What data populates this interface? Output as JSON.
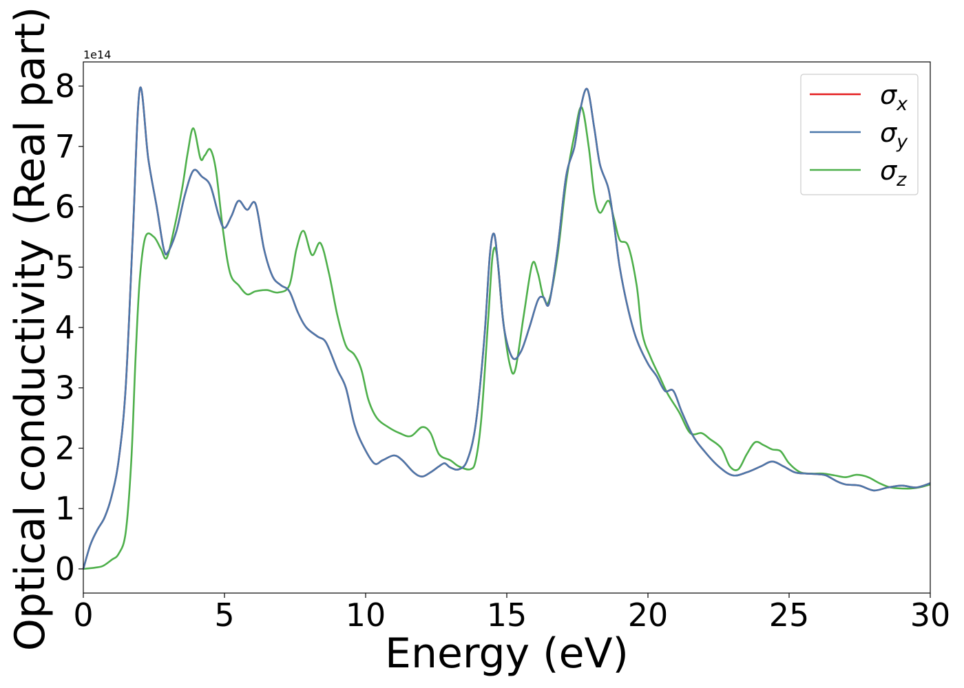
{
  "chart_data": {
    "type": "line",
    "xlabel": "Energy (eV)",
    "ylabel": "Optical conductivity (Real part)",
    "offset_text": "1e14",
    "xlim": [
      0,
      30
    ],
    "ylim": [
      -0.4,
      8.4
    ],
    "xticks": [
      0,
      5,
      10,
      15,
      20,
      25,
      30
    ],
    "xtick_labels": [
      "0",
      "5",
      "10",
      "15",
      "20",
      "25",
      "30"
    ],
    "yticks": [
      0,
      1,
      2,
      3,
      4,
      5,
      6,
      7,
      8
    ],
    "ytick_labels": [
      "0",
      "1",
      "2",
      "3",
      "4",
      "5",
      "6",
      "7",
      "8"
    ],
    "grid": false,
    "legend_position": "top-right",
    "series": [
      {
        "name": "σ_x",
        "legend_base": "σ",
        "legend_sub": "x",
        "color": "#e41a1c",
        "points": [
          [
            0,
            0
          ],
          [
            0.25,
            0.4
          ],
          [
            0.5,
            0.65
          ],
          [
            0.75,
            0.85
          ],
          [
            1.0,
            1.2
          ],
          [
            1.25,
            1.8
          ],
          [
            1.5,
            3.0
          ],
          [
            1.75,
            5.5
          ],
          [
            2.0,
            7.95
          ],
          [
            2.3,
            6.8
          ],
          [
            2.6,
            6.0
          ],
          [
            2.85,
            5.3
          ],
          [
            3.0,
            5.25
          ],
          [
            3.3,
            5.6
          ],
          [
            3.6,
            6.2
          ],
          [
            3.9,
            6.6
          ],
          [
            4.2,
            6.5
          ],
          [
            4.5,
            6.35
          ],
          [
            4.8,
            5.85
          ],
          [
            5.0,
            5.65
          ],
          [
            5.25,
            5.85
          ],
          [
            5.5,
            6.1
          ],
          [
            5.8,
            5.95
          ],
          [
            6.1,
            6.05
          ],
          [
            6.4,
            5.3
          ],
          [
            6.7,
            4.85
          ],
          [
            7.0,
            4.7
          ],
          [
            7.3,
            4.6
          ],
          [
            7.6,
            4.25
          ],
          [
            7.9,
            4.0
          ],
          [
            8.3,
            3.85
          ],
          [
            8.6,
            3.75
          ],
          [
            9.0,
            3.3
          ],
          [
            9.3,
            3.0
          ],
          [
            9.6,
            2.4
          ],
          [
            9.9,
            2.05
          ],
          [
            10.3,
            1.75
          ],
          [
            10.6,
            1.8
          ],
          [
            11.0,
            1.88
          ],
          [
            11.3,
            1.8
          ],
          [
            11.7,
            1.6
          ],
          [
            12.0,
            1.53
          ],
          [
            12.3,
            1.6
          ],
          [
            12.6,
            1.7
          ],
          [
            12.8,
            1.75
          ],
          [
            13.0,
            1.68
          ],
          [
            13.3,
            1.65
          ],
          [
            13.6,
            1.8
          ],
          [
            13.9,
            2.4
          ],
          [
            14.2,
            3.8
          ],
          [
            14.4,
            5.2
          ],
          [
            14.55,
            5.55
          ],
          [
            14.7,
            5.0
          ],
          [
            14.9,
            4.0
          ],
          [
            15.2,
            3.5
          ],
          [
            15.5,
            3.6
          ],
          [
            15.8,
            4.0
          ],
          [
            16.1,
            4.45
          ],
          [
            16.3,
            4.5
          ],
          [
            16.5,
            4.4
          ],
          [
            16.8,
            5.3
          ],
          [
            17.1,
            6.5
          ],
          [
            17.4,
            7.0
          ],
          [
            17.6,
            7.6
          ],
          [
            17.85,
            7.95
          ],
          [
            18.1,
            7.3
          ],
          [
            18.3,
            6.7
          ],
          [
            18.6,
            6.3
          ],
          [
            18.8,
            5.7
          ],
          [
            19.0,
            5.0
          ],
          [
            19.3,
            4.3
          ],
          [
            19.6,
            3.8
          ],
          [
            20.0,
            3.4
          ],
          [
            20.3,
            3.2
          ],
          [
            20.6,
            2.95
          ],
          [
            20.9,
            2.95
          ],
          [
            21.2,
            2.6
          ],
          [
            21.6,
            2.2
          ],
          [
            22.0,
            1.95
          ],
          [
            22.5,
            1.7
          ],
          [
            23.0,
            1.55
          ],
          [
            23.5,
            1.6
          ],
          [
            24.0,
            1.7
          ],
          [
            24.4,
            1.78
          ],
          [
            24.8,
            1.7
          ],
          [
            25.2,
            1.6
          ],
          [
            25.6,
            1.58
          ],
          [
            26.0,
            1.57
          ],
          [
            26.3,
            1.55
          ],
          [
            26.7,
            1.45
          ],
          [
            27.0,
            1.4
          ],
          [
            27.5,
            1.38
          ],
          [
            28.0,
            1.3
          ],
          [
            28.5,
            1.35
          ],
          [
            29.0,
            1.38
          ],
          [
            29.5,
            1.35
          ],
          [
            30.0,
            1.42
          ]
        ]
      },
      {
        "name": "σ_y",
        "legend_base": "σ",
        "legend_sub": "y",
        "color": "#4a77aa",
        "points": [
          [
            0,
            0
          ],
          [
            0.25,
            0.4
          ],
          [
            0.5,
            0.65
          ],
          [
            0.75,
            0.85
          ],
          [
            1.0,
            1.2
          ],
          [
            1.25,
            1.8
          ],
          [
            1.5,
            3.0
          ],
          [
            1.75,
            5.5
          ],
          [
            2.0,
            7.95
          ],
          [
            2.3,
            6.8
          ],
          [
            2.6,
            6.0
          ],
          [
            2.85,
            5.3
          ],
          [
            3.0,
            5.25
          ],
          [
            3.3,
            5.6
          ],
          [
            3.6,
            6.2
          ],
          [
            3.9,
            6.6
          ],
          [
            4.2,
            6.5
          ],
          [
            4.5,
            6.35
          ],
          [
            4.8,
            5.85
          ],
          [
            5.0,
            5.65
          ],
          [
            5.25,
            5.85
          ],
          [
            5.5,
            6.1
          ],
          [
            5.8,
            5.95
          ],
          [
            6.1,
            6.05
          ],
          [
            6.4,
            5.3
          ],
          [
            6.7,
            4.85
          ],
          [
            7.0,
            4.7
          ],
          [
            7.3,
            4.6
          ],
          [
            7.6,
            4.25
          ],
          [
            7.9,
            4.0
          ],
          [
            8.3,
            3.85
          ],
          [
            8.6,
            3.75
          ],
          [
            9.0,
            3.3
          ],
          [
            9.3,
            3.0
          ],
          [
            9.6,
            2.4
          ],
          [
            9.9,
            2.05
          ],
          [
            10.3,
            1.75
          ],
          [
            10.6,
            1.8
          ],
          [
            11.0,
            1.88
          ],
          [
            11.3,
            1.8
          ],
          [
            11.7,
            1.6
          ],
          [
            12.0,
            1.53
          ],
          [
            12.3,
            1.6
          ],
          [
            12.6,
            1.7
          ],
          [
            12.8,
            1.75
          ],
          [
            13.0,
            1.68
          ],
          [
            13.3,
            1.65
          ],
          [
            13.6,
            1.8
          ],
          [
            13.9,
            2.4
          ],
          [
            14.2,
            3.8
          ],
          [
            14.4,
            5.2
          ],
          [
            14.55,
            5.55
          ],
          [
            14.7,
            5.0
          ],
          [
            14.9,
            4.0
          ],
          [
            15.2,
            3.5
          ],
          [
            15.5,
            3.6
          ],
          [
            15.8,
            4.0
          ],
          [
            16.1,
            4.45
          ],
          [
            16.3,
            4.5
          ],
          [
            16.5,
            4.4
          ],
          [
            16.8,
            5.3
          ],
          [
            17.1,
            6.5
          ],
          [
            17.4,
            7.0
          ],
          [
            17.6,
            7.6
          ],
          [
            17.85,
            7.95
          ],
          [
            18.1,
            7.3
          ],
          [
            18.3,
            6.7
          ],
          [
            18.6,
            6.3
          ],
          [
            18.8,
            5.7
          ],
          [
            19.0,
            5.0
          ],
          [
            19.3,
            4.3
          ],
          [
            19.6,
            3.8
          ],
          [
            20.0,
            3.4
          ],
          [
            20.3,
            3.2
          ],
          [
            20.6,
            2.95
          ],
          [
            20.9,
            2.95
          ],
          [
            21.2,
            2.6
          ],
          [
            21.6,
            2.2
          ],
          [
            22.0,
            1.95
          ],
          [
            22.5,
            1.7
          ],
          [
            23.0,
            1.55
          ],
          [
            23.5,
            1.6
          ],
          [
            24.0,
            1.7
          ],
          [
            24.4,
            1.78
          ],
          [
            24.8,
            1.7
          ],
          [
            25.2,
            1.6
          ],
          [
            25.6,
            1.58
          ],
          [
            26.0,
            1.57
          ],
          [
            26.3,
            1.55
          ],
          [
            26.7,
            1.45
          ],
          [
            27.0,
            1.4
          ],
          [
            27.5,
            1.38
          ],
          [
            28.0,
            1.3
          ],
          [
            28.5,
            1.35
          ],
          [
            29.0,
            1.38
          ],
          [
            29.5,
            1.35
          ],
          [
            30.0,
            1.42
          ]
        ]
      },
      {
        "name": "σ_z",
        "legend_base": "σ",
        "legend_sub": "z",
        "color": "#4daf4a",
        "points": [
          [
            0,
            0
          ],
          [
            0.4,
            0.02
          ],
          [
            0.7,
            0.05
          ],
          [
            1.0,
            0.15
          ],
          [
            1.25,
            0.25
          ],
          [
            1.5,
            0.6
          ],
          [
            1.7,
            1.8
          ],
          [
            1.85,
            3.5
          ],
          [
            2.0,
            4.8
          ],
          [
            2.2,
            5.5
          ],
          [
            2.5,
            5.5
          ],
          [
            2.75,
            5.3
          ],
          [
            2.95,
            5.15
          ],
          [
            3.2,
            5.6
          ],
          [
            3.5,
            6.3
          ],
          [
            3.7,
            6.9
          ],
          [
            3.9,
            7.3
          ],
          [
            4.15,
            6.8
          ],
          [
            4.3,
            6.85
          ],
          [
            4.5,
            6.95
          ],
          [
            4.7,
            6.6
          ],
          [
            4.95,
            5.6
          ],
          [
            5.2,
            4.9
          ],
          [
            5.5,
            4.7
          ],
          [
            5.8,
            4.55
          ],
          [
            6.1,
            4.6
          ],
          [
            6.5,
            4.62
          ],
          [
            6.9,
            4.58
          ],
          [
            7.3,
            4.7
          ],
          [
            7.55,
            5.3
          ],
          [
            7.8,
            5.6
          ],
          [
            8.1,
            5.2
          ],
          [
            8.4,
            5.4
          ],
          [
            8.7,
            4.9
          ],
          [
            9.0,
            4.2
          ],
          [
            9.3,
            3.7
          ],
          [
            9.6,
            3.55
          ],
          [
            9.85,
            3.3
          ],
          [
            10.1,
            2.8
          ],
          [
            10.4,
            2.5
          ],
          [
            10.8,
            2.35
          ],
          [
            11.2,
            2.25
          ],
          [
            11.6,
            2.2
          ],
          [
            12.0,
            2.35
          ],
          [
            12.3,
            2.25
          ],
          [
            12.6,
            1.9
          ],
          [
            13.0,
            1.8
          ],
          [
            13.3,
            1.7
          ],
          [
            13.7,
            1.65
          ],
          [
            13.9,
            1.8
          ],
          [
            14.1,
            2.5
          ],
          [
            14.35,
            4.2
          ],
          [
            14.5,
            5.2
          ],
          [
            14.65,
            5.2
          ],
          [
            14.85,
            4.2
          ],
          [
            15.1,
            3.4
          ],
          [
            15.3,
            3.3
          ],
          [
            15.6,
            4.2
          ],
          [
            15.9,
            5.05
          ],
          [
            16.1,
            4.9
          ],
          [
            16.3,
            4.5
          ],
          [
            16.5,
            4.45
          ],
          [
            16.8,
            5.2
          ],
          [
            17.1,
            6.4
          ],
          [
            17.4,
            7.2
          ],
          [
            17.65,
            7.65
          ],
          [
            17.9,
            7.0
          ],
          [
            18.1,
            6.2
          ],
          [
            18.3,
            5.9
          ],
          [
            18.6,
            6.1
          ],
          [
            18.8,
            5.8
          ],
          [
            19.0,
            5.45
          ],
          [
            19.3,
            5.35
          ],
          [
            19.6,
            4.7
          ],
          [
            19.8,
            3.9
          ],
          [
            20.1,
            3.5
          ],
          [
            20.4,
            3.2
          ],
          [
            20.7,
            2.9
          ],
          [
            21.1,
            2.6
          ],
          [
            21.5,
            2.25
          ],
          [
            21.9,
            2.25
          ],
          [
            22.2,
            2.15
          ],
          [
            22.6,
            2.0
          ],
          [
            22.9,
            1.7
          ],
          [
            23.2,
            1.65
          ],
          [
            23.5,
            1.9
          ],
          [
            23.8,
            2.1
          ],
          [
            24.1,
            2.05
          ],
          [
            24.4,
            1.98
          ],
          [
            24.7,
            1.95
          ],
          [
            25.0,
            1.75
          ],
          [
            25.4,
            1.6
          ],
          [
            25.8,
            1.58
          ],
          [
            26.2,
            1.58
          ],
          [
            26.6,
            1.55
          ],
          [
            27.0,
            1.52
          ],
          [
            27.4,
            1.56
          ],
          [
            27.8,
            1.52
          ],
          [
            28.2,
            1.42
          ],
          [
            28.6,
            1.35
          ],
          [
            29.2,
            1.33
          ],
          [
            29.6,
            1.35
          ],
          [
            30.0,
            1.4
          ]
        ]
      }
    ]
  }
}
